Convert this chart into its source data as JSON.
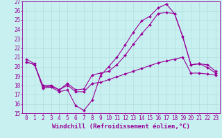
{
  "xlabel": "Windchill (Refroidissement éolien,°C)",
  "background_color": "#c8f0f0",
  "line_color": "#990099",
  "grid_color": "#b0dede",
  "xlim": [
    -0.5,
    23.5
  ],
  "ylim": [
    15,
    27
  ],
  "xticks": [
    0,
    1,
    2,
    3,
    4,
    5,
    6,
    7,
    8,
    9,
    10,
    11,
    12,
    13,
    14,
    15,
    16,
    17,
    18,
    19,
    20,
    21,
    22,
    23
  ],
  "yticks": [
    15,
    16,
    17,
    18,
    19,
    20,
    21,
    22,
    23,
    24,
    25,
    26,
    27
  ],
  "line1_x": [
    0,
    1,
    2,
    3,
    4,
    5,
    6,
    7,
    8,
    9,
    10,
    11,
    12,
    13,
    14,
    15,
    16,
    17,
    18,
    19,
    20,
    21,
    22,
    23
  ],
  "line1_y": [
    20.8,
    20.3,
    17.7,
    17.8,
    17.3,
    17.5,
    15.8,
    15.3,
    16.4,
    19.0,
    20.0,
    21.0,
    22.3,
    23.7,
    24.9,
    25.4,
    26.3,
    26.7,
    25.7,
    23.2,
    20.2,
    20.3,
    20.2,
    19.5
  ],
  "line2_x": [
    0,
    1,
    2,
    3,
    4,
    5,
    6,
    7,
    8,
    9,
    10,
    11,
    12,
    13,
    14,
    15,
    16,
    17,
    18,
    19,
    20,
    21,
    22,
    23
  ],
  "line2_y": [
    20.5,
    20.2,
    18.0,
    18.0,
    17.5,
    18.0,
    17.3,
    17.3,
    18.2,
    18.3,
    18.6,
    18.9,
    19.2,
    19.5,
    19.8,
    20.1,
    20.4,
    20.6,
    20.8,
    21.0,
    19.3,
    19.3,
    19.2,
    19.1
  ],
  "line3_x": [
    0,
    1,
    2,
    3,
    4,
    5,
    6,
    7,
    8,
    9,
    10,
    11,
    12,
    13,
    14,
    15,
    16,
    17,
    18,
    19,
    20,
    21,
    22,
    23
  ],
  "line3_y": [
    20.5,
    20.2,
    17.8,
    17.9,
    17.5,
    18.2,
    17.5,
    17.6,
    19.1,
    19.3,
    19.5,
    20.2,
    21.2,
    22.4,
    23.5,
    24.5,
    25.7,
    25.8,
    25.7,
    23.2,
    20.2,
    20.3,
    19.9,
    19.3
  ],
  "marker": "D",
  "markersize": 2.0,
  "linewidth": 0.8,
  "xlabel_fontsize": 6.5,
  "tick_fontsize": 5.5
}
